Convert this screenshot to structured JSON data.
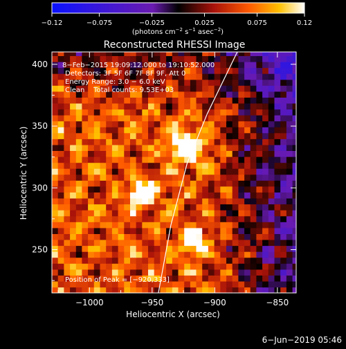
{
  "chart_data": {
    "type": "heatmap",
    "title": "Reconstructed RHESSI Image",
    "xlabel": "Heliocentric X (arcsec)",
    "ylabel": "Heliocentric Y (arcsec)",
    "xlim": [
      -1030,
      -835
    ],
    "ylim": [
      215,
      410
    ],
    "x_ticks": [
      -1000,
      -950,
      -900,
      -850
    ],
    "y_ticks": [
      250,
      300,
      350,
      400
    ],
    "x_tick_labels": [
      "−1000",
      "−950",
      "−900",
      "−850"
    ],
    "y_tick_labels": [
      "250",
      "300",
      "350",
      "400"
    ],
    "colorbar": {
      "min": -0.12,
      "max": 0.12,
      "ticks": [
        -0.12,
        -0.075,
        -0.025,
        0.025,
        0.075,
        0.12
      ],
      "tick_labels": [
        "−0.12",
        "−0.075",
        "−0.025",
        "0.025",
        "0.075",
        "0.12"
      ],
      "unit_parts": [
        "(photons cm",
        "−2",
        " s",
        "−1",
        " asec",
        "−2",
        ")"
      ]
    },
    "annotations": [
      "8−Feb−2015 19:09:12.000 to 19:10:52.000",
      "Detectors: 3F 5F 6F 7F 8F 9F, Att 0",
      "Energy Range: 3.0 − 6.0 keV",
      "Clean    Total counts: 9.53E+03"
    ],
    "peak_label": "Position of Peak = [−920,333]",
    "peak": [
      -920,
      333
    ],
    "sources": [
      {
        "x": -922,
        "y": 334,
        "peak": 0.12,
        "sigma": 9
      },
      {
        "x": -958,
        "y": 296,
        "peak": 0.11,
        "sigma": 7
      },
      {
        "x": -916,
        "y": 258,
        "peak": 0.1,
        "sigma": 7
      }
    ],
    "limb": [
      [
        -945,
        215
      ],
      [
        -935,
        270
      ],
      [
        -922,
        320
      ],
      [
        -906,
        360
      ],
      [
        -882,
        410
      ]
    ],
    "footer": "6−Jun−2019 05:46"
  }
}
